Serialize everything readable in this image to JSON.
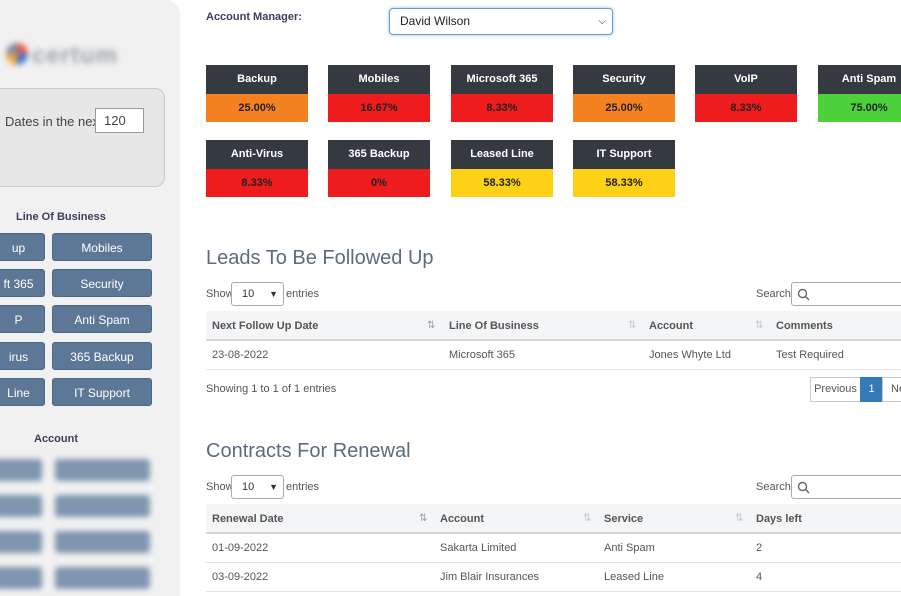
{
  "sidebar": {
    "logo_text": "certum",
    "dates_label": "Dates in the next",
    "dates_value": "120",
    "lob_title": "Line Of Business",
    "lob_buttons": [
      "up",
      "Mobiles",
      "ft 365",
      "Security",
      "P",
      "Anti Spam",
      "irus",
      "365 Backup",
      "Line",
      "IT Support"
    ],
    "account_title": "Account"
  },
  "manager": {
    "label": "Account Manager:",
    "selected": "David Wilson"
  },
  "tiles": [
    {
      "name": "Backup",
      "value": "25.00%",
      "color": "#f58220"
    },
    {
      "name": "Mobiles",
      "value": "16.67%",
      "color": "#ee1c1c"
    },
    {
      "name": "Microsoft 365",
      "value": "8.33%",
      "color": "#ee1c1c"
    },
    {
      "name": "Security",
      "value": "25.00%",
      "color": "#f58220"
    },
    {
      "name": "VoIP",
      "value": "8.33%",
      "color": "#ee1c1c"
    },
    {
      "name": "Anti Spam",
      "value": "75.00%",
      "color": "#4cd13a"
    },
    {
      "name": "Anti-Virus",
      "value": "8.33%",
      "color": "#ee1c1c"
    },
    {
      "name": "365 Backup",
      "value": "0%",
      "color": "#ee1c1c"
    },
    {
      "name": "Leased Line",
      "value": "58.33%",
      "color": "#fcd116"
    },
    {
      "name": "IT Support",
      "value": "58.33%",
      "color": "#fcd116"
    }
  ],
  "leads": {
    "heading": "Leads To Be Followed Up",
    "show": "Show",
    "length": "10",
    "entries": "entries",
    "search": "Search:",
    "columns": [
      "Next Follow Up Date",
      "Line Of Business",
      "Account",
      "Comments"
    ],
    "rows": [
      [
        "23-08-2022",
        "Microsoft 365",
        "Jones Whyte Ltd",
        "Test Required"
      ]
    ],
    "info": "Showing 1 to 1 of 1 entries",
    "prev": "Previous",
    "page": "1",
    "next": "Ne"
  },
  "contracts": {
    "heading": "Contracts For Renewal",
    "show": "Show",
    "length": "10",
    "entries": "entries",
    "search": "Search:",
    "columns": [
      "Renewal Date",
      "Account",
      "Service",
      "Days left"
    ],
    "rows": [
      [
        "01-09-2022",
        "Sakarta Limited",
        "Anti Spam",
        "2"
      ],
      [
        "03-09-2022",
        "Jim Blair Insurances",
        "Leased Line",
        "4"
      ]
    ]
  }
}
